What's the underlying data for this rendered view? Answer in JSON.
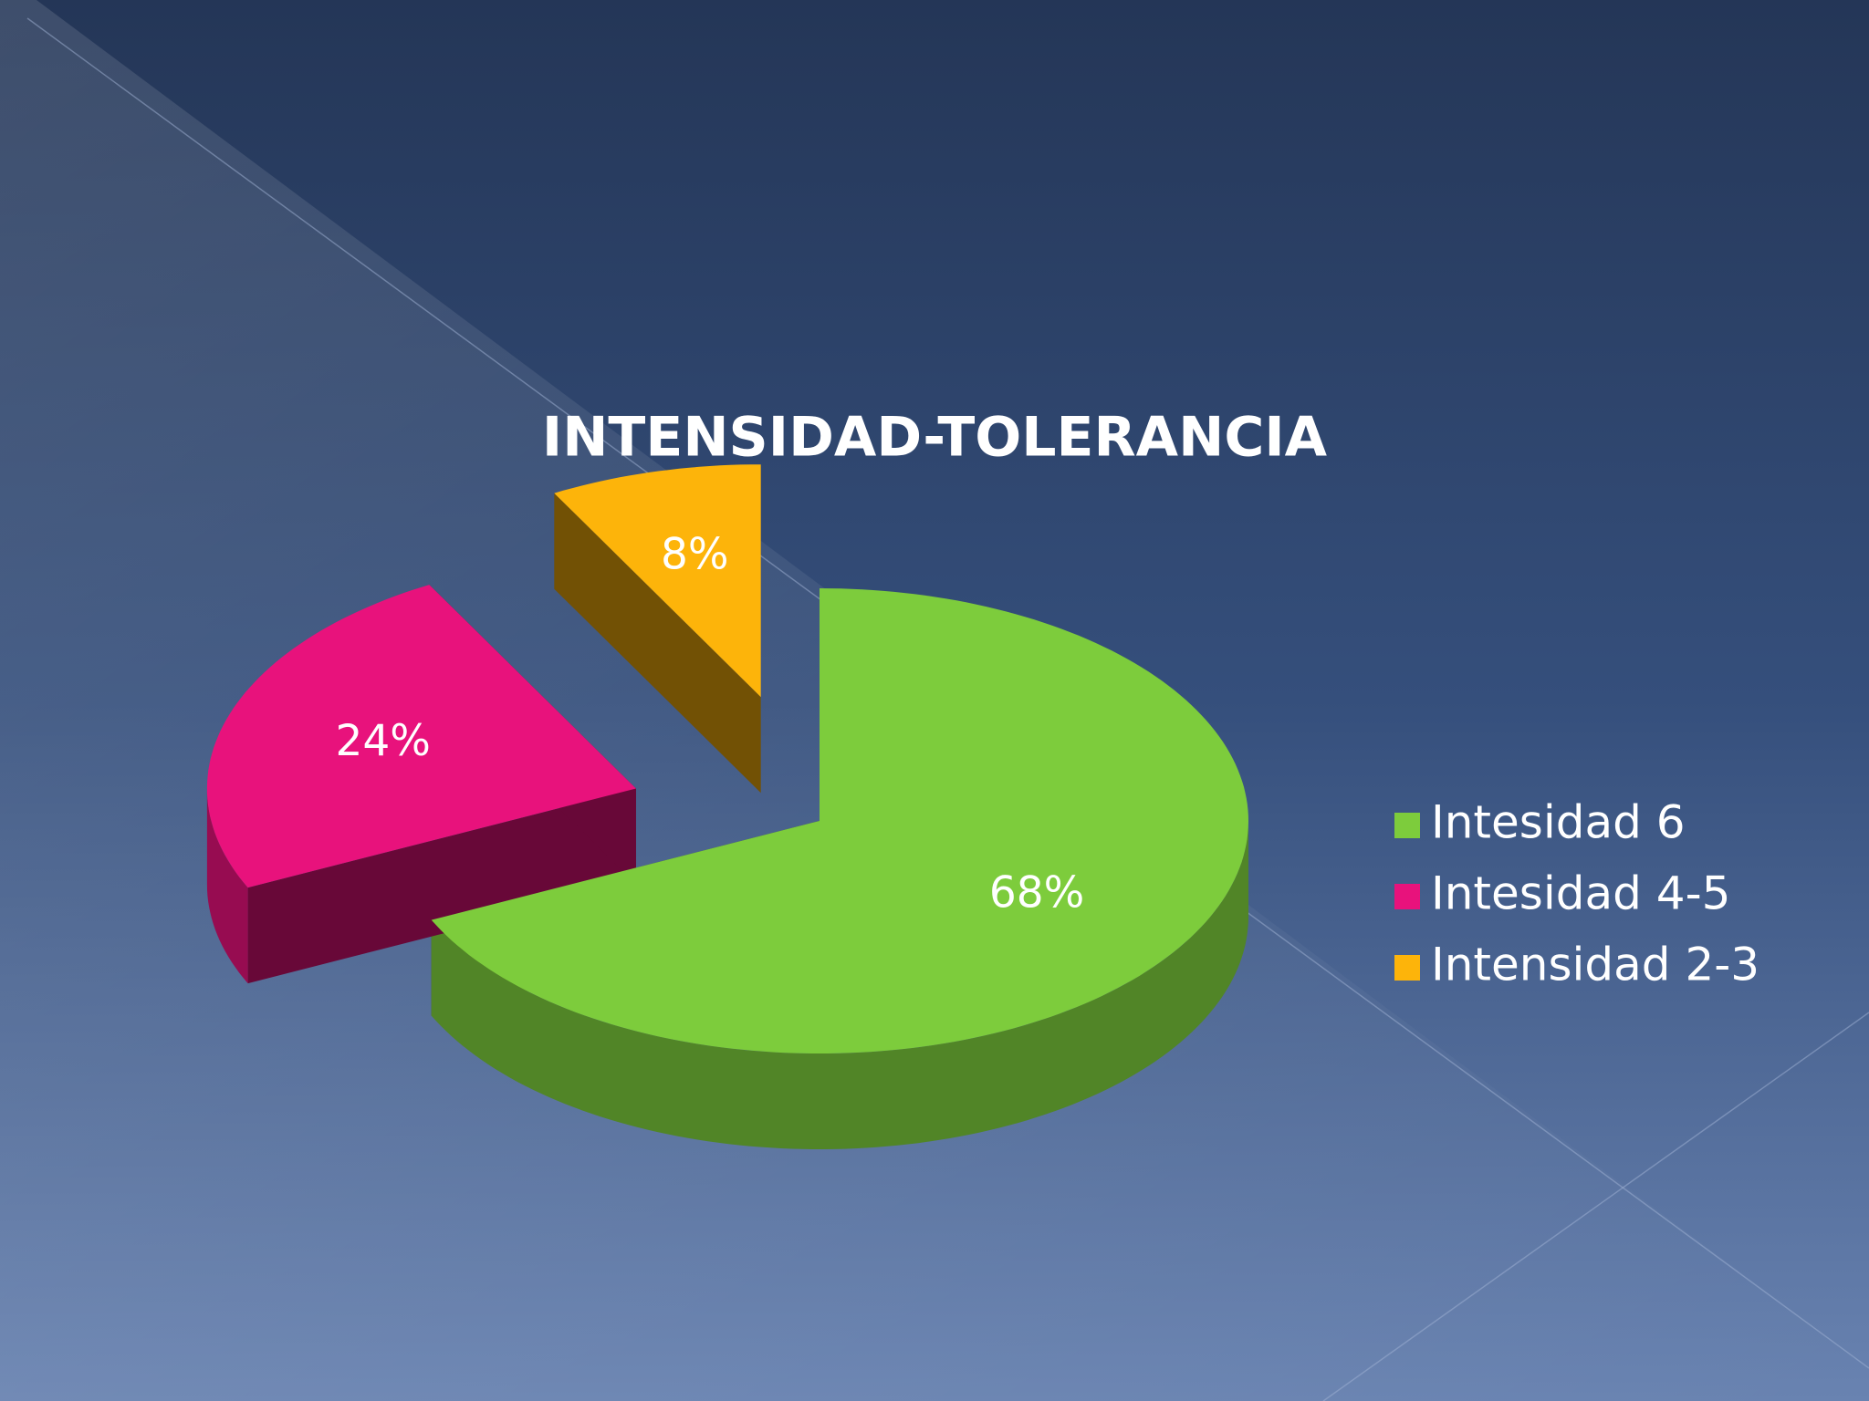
{
  "chart_data": {
    "type": "pie",
    "title": "INTENSIDAD-TOLERANCIA",
    "categories": [
      "Intesidad 6",
      "Intesidad 4-5",
      "Intensidad 2-3"
    ],
    "values": [
      68,
      24,
      8
    ],
    "value_labels": [
      "68%",
      "24%",
      "8%"
    ],
    "colors": [
      "#7dcc3c",
      "#e8127c",
      "#fdb40a"
    ],
    "legend": "right"
  }
}
